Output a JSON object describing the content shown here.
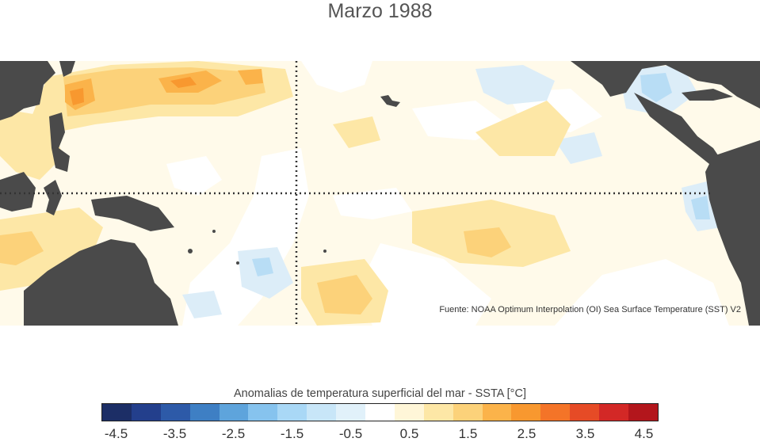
{
  "title": "Marzo 1988",
  "source": "Fuente: NOAA Optimum Interpolation (OI) Sea Surface Temperature (SST) V2",
  "colorbar": {
    "title": "Anomalias de temperatura superficial del mar - SSTA  [°C]",
    "colors": [
      "#1c2e66",
      "#233f8c",
      "#2d5aa8",
      "#3e7fc4",
      "#5ea4dc",
      "#86c3ee",
      "#a9d8f6",
      "#c8e6f8",
      "#e1f1fa",
      "#ffffff",
      "#fff6d8",
      "#fde7a6",
      "#fcd27a",
      "#fbb34a",
      "#f8982f",
      "#f47428",
      "#e64b26",
      "#d32826",
      "#b3161c"
    ],
    "tick_labels": [
      "-4.5",
      "-3.5",
      "-2.5",
      "-1.5",
      "-0.5",
      "0.5",
      "1.5",
      "2.5",
      "3.5",
      "4.5"
    ]
  },
  "map": {
    "land_color": "#4a4a4a",
    "dotted_line_color": "#333333"
  }
}
